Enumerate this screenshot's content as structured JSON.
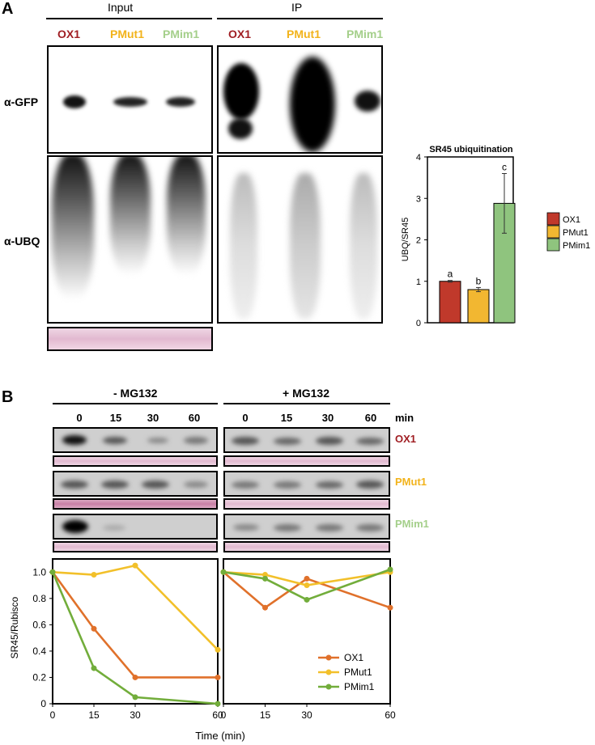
{
  "panelA": {
    "label": "A",
    "input_label": "Input",
    "ip_label": "IP",
    "samples": [
      {
        "name": "OX1",
        "color": "#a01e23"
      },
      {
        "name": "PMut1",
        "color": "#f2b31b"
      },
      {
        "name": "PMim1",
        "color": "#a4cf8a"
      }
    ],
    "row_gfp": "α-GFP",
    "row_ubq": "α-UBQ"
  },
  "panelB": {
    "label": "B",
    "minus_label": "- MG132",
    "plus_label": "+ MG132",
    "times": [
      "0",
      "15",
      "30",
      "60"
    ],
    "min_label": "min",
    "lines": [
      {
        "name": "OX1",
        "color": "#a01e23"
      },
      {
        "name": "PMut1",
        "color": "#f2b31b"
      },
      {
        "name": "PMim1",
        "color": "#a4cf8a"
      }
    ]
  },
  "chart_data": [
    {
      "type": "bar",
      "title": "SR45 ubiquitination",
      "ylabel": "UBQ/SR45",
      "ylim": [
        0,
        4
      ],
      "yticks": [
        0,
        1,
        2,
        3,
        4
      ],
      "categories": [
        "OX1",
        "PMut1",
        "PMim1"
      ],
      "values": [
        1.0,
        0.8,
        2.88
      ],
      "errors": [
        0.02,
        0.05,
        0.72
      ],
      "letters": [
        "a",
        "b",
        "c"
      ],
      "colors": [
        "#c0392b",
        "#f2b731",
        "#8fc47e"
      ],
      "legend": [
        "OX1",
        "PMut1",
        "PMim1"
      ]
    },
    {
      "type": "line",
      "ylabel": "SR45/Rubisco",
      "xlabel": "Time (min)",
      "x": [
        0,
        15,
        30,
        60
      ],
      "xticks": [
        "0",
        "15",
        "30",
        "60"
      ],
      "ylim": [
        0,
        1.1
      ],
      "yticks": [
        "0",
        "0.2",
        "0.4",
        "0.6",
        "0.8",
        "1.0"
      ],
      "legend_position": "bottom-right",
      "series": [
        {
          "name": "OX1",
          "color": "#e0712b",
          "values": [
            1.0,
            0.57,
            0.2,
            0.2
          ],
          "values_mg132": [
            1.0,
            0.73,
            0.95,
            0.73
          ]
        },
        {
          "name": "PMut1",
          "color": "#f2c02a",
          "values": [
            1.0,
            0.98,
            1.05,
            0.41
          ],
          "values_mg132": [
            1.0,
            0.98,
            0.9,
            1.0
          ]
        },
        {
          "name": "PMim1",
          "color": "#72ad3b",
          "values": [
            1.0,
            0.27,
            0.05,
            0.0
          ],
          "values_mg132": [
            1.0,
            0.95,
            0.79,
            1.02
          ]
        }
      ]
    }
  ]
}
